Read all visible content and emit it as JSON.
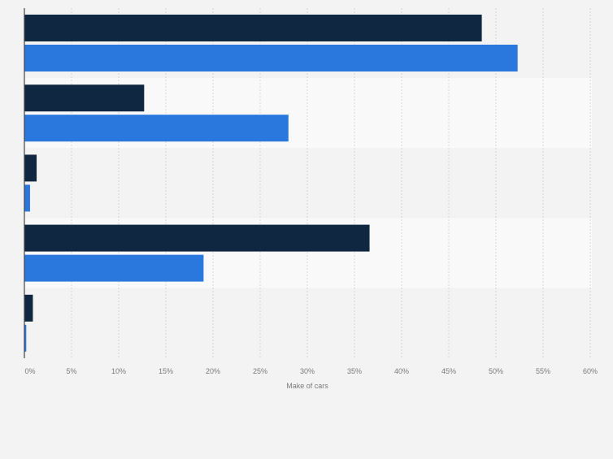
{
  "chart_data": {
    "type": "bar",
    "orientation": "horizontal",
    "categories": [
      "",
      "",
      "",
      "",
      ""
    ],
    "series": [
      {
        "values": [
          48.5,
          12.7,
          1.3,
          36.6,
          0.9
        ]
      },
      {
        "values": [
          52.3,
          28.0,
          0.6,
          19.0,
          0.2
        ]
      }
    ],
    "xlabel": "Make of cars",
    "ylabel": "",
    "xlim": [
      0,
      60
    ],
    "x_ticks": [
      0,
      5,
      10,
      15,
      20,
      25,
      30,
      35,
      40,
      45,
      50,
      55,
      60
    ],
    "x_tick_labels": [
      "0%",
      "5%",
      "10%",
      "15%",
      "20%",
      "25%",
      "30%",
      "35%",
      "40%",
      "45%",
      "50%",
      "55%",
      "60%"
    ],
    "grid": true,
    "legend": "none",
    "colors": {
      "series": [
        "#0f2740",
        "#2a78dd"
      ],
      "band_light": "#f9f9f9",
      "band_dark": "#f3f3f3",
      "grid": "#d6d6d6",
      "axis": "#444444",
      "tick_text": "#7a7a7a"
    }
  }
}
